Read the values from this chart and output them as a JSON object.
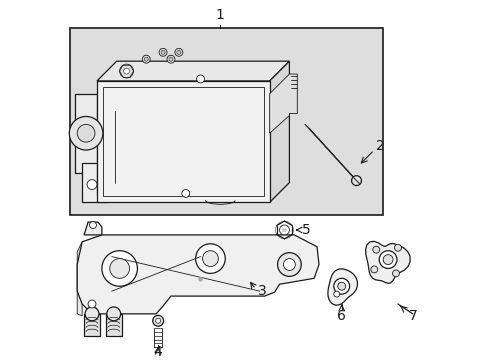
{
  "bg_color": "#ffffff",
  "box_bg": "#e8e8e8",
  "line_color": "#1a1a1a",
  "part_fill": "#f5f5f5",
  "shade1": "#e0e0e0",
  "shade2": "#d0d0d0"
}
